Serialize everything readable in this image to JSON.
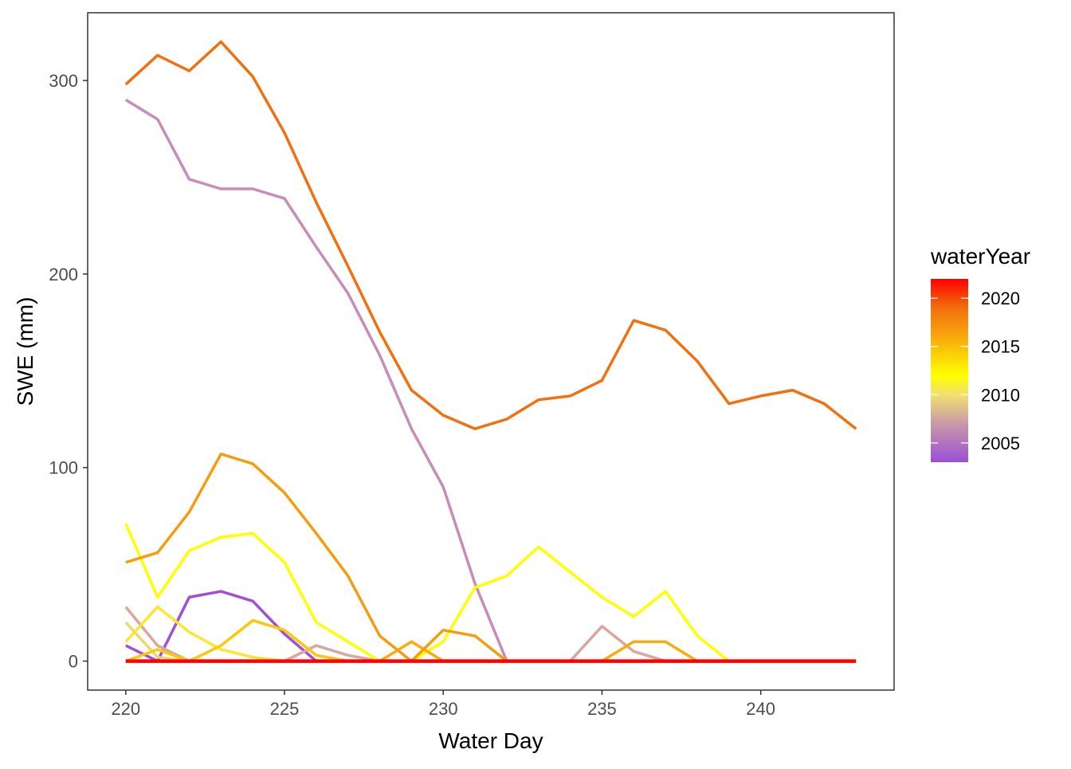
{
  "chart_data": {
    "type": "line",
    "xlabel": "Water Day",
    "ylabel": "SWE (mm)",
    "xlim": [
      218.8,
      244.2
    ],
    "ylim": [
      -15,
      335
    ],
    "x_ticks": [
      220,
      225,
      230,
      235,
      240
    ],
    "y_ticks": [
      0,
      100,
      200,
      300
    ],
    "grid": false,
    "legend": {
      "title": "waterYear",
      "position": "right",
      "type": "colorbar",
      "range": [
        2003,
        2022
      ],
      "ticks": [
        2005,
        2010,
        2015,
        2020
      ],
      "gradient": [
        {
          "year": 2003,
          "color": "#9B4FD6"
        },
        {
          "year": 2007,
          "color": "#C89AA8"
        },
        {
          "year": 2010,
          "color": "#F2E070"
        },
        {
          "year": 2012,
          "color": "#FFFF00"
        },
        {
          "year": 2016,
          "color": "#F9A80C"
        },
        {
          "year": 2019,
          "color": "#F26F0C"
        },
        {
          "year": 2022,
          "color": "#FF0000"
        }
      ]
    },
    "x": [
      220,
      221,
      222,
      223,
      224,
      225,
      226,
      227,
      228,
      229,
      230,
      231,
      232,
      233,
      234,
      235,
      236,
      237,
      238,
      239,
      240,
      241,
      242,
      243
    ],
    "series": [
      {
        "waterYear": 2003,
        "color": "#A050D4",
        "values": [
          8,
          0,
          33,
          36,
          31,
          14,
          0,
          0,
          0,
          0,
          0,
          0,
          0,
          0,
          0,
          0,
          0,
          0,
          0,
          0,
          0,
          0,
          0,
          0
        ]
      },
      {
        "waterYear": 2007,
        "color": "#C88CB8",
        "values": [
          290,
          280,
          249,
          244,
          244,
          239,
          214,
          190,
          158,
          120,
          90,
          40,
          0,
          0,
          0,
          0,
          0,
          0,
          0,
          0,
          0,
          0,
          0,
          0
        ]
      },
      {
        "waterYear": 2008,
        "color": "#D6A89E",
        "values": [
          28,
          8,
          0,
          0,
          0,
          0,
          8,
          3,
          0,
          0,
          0,
          0,
          0,
          0,
          0,
          18,
          5,
          0,
          0,
          0,
          0,
          0,
          0,
          0
        ]
      },
      {
        "waterYear": 2010,
        "color": "#F0D870",
        "values": [
          20,
          2,
          0,
          0,
          0,
          0,
          0,
          0,
          0,
          0,
          0,
          0,
          0,
          0,
          0,
          0,
          0,
          0,
          0,
          0,
          0,
          0,
          0,
          0
        ]
      },
      {
        "waterYear": 2011,
        "color": "#FAE830",
        "values": [
          10,
          28,
          15,
          6,
          2,
          0,
          0,
          0,
          0,
          0,
          0,
          0,
          0,
          0,
          0,
          0,
          0,
          0,
          0,
          0,
          0,
          0,
          0,
          0
        ]
      },
      {
        "waterYear": 2012,
        "color": "#FFFF00",
        "values": [
          71,
          33,
          57,
          64,
          66,
          51,
          20,
          10,
          0,
          0,
          10,
          38,
          44,
          59,
          46,
          33,
          23,
          36,
          13,
          0,
          0,
          0,
          0,
          0
        ]
      },
      {
        "waterYear": 2014,
        "color": "#FBC80C",
        "values": [
          0,
          6,
          0,
          8,
          21,
          16,
          3,
          0,
          0,
          0,
          0,
          0,
          0,
          0,
          0,
          0,
          0,
          0,
          0,
          0,
          0,
          0,
          0,
          0
        ]
      },
      {
        "waterYear": 2015,
        "color": "#F7AE0A",
        "values": [
          0,
          0,
          0,
          0,
          0,
          0,
          0,
          0,
          0,
          10,
          0,
          0,
          0,
          0,
          0,
          0,
          10,
          10,
          0,
          0,
          0,
          0,
          0,
          0
        ]
      },
      {
        "waterYear": 2016,
        "color": "#F59D10",
        "values": [
          51,
          56,
          77,
          107,
          102,
          87,
          66,
          44,
          13,
          0,
          16,
          13,
          0,
          0,
          0,
          0,
          0,
          0,
          0,
          0,
          0,
          0,
          0,
          0
        ]
      },
      {
        "waterYear": 2019,
        "color": "#F2700E",
        "values": [
          298,
          313,
          305,
          320,
          302,
          273,
          237,
          204,
          170,
          140,
          127,
          120,
          125,
          135,
          137,
          145,
          176,
          171,
          155,
          133,
          137,
          140,
          133,
          120
        ]
      },
      {
        "waterYear": 2022,
        "color": "#FF0000",
        "values": [
          0,
          0,
          0,
          0,
          0,
          0,
          0,
          0,
          0,
          0,
          0,
          0,
          0,
          0,
          0,
          0,
          0,
          0,
          0,
          0,
          0,
          0,
          0,
          0
        ]
      }
    ]
  }
}
